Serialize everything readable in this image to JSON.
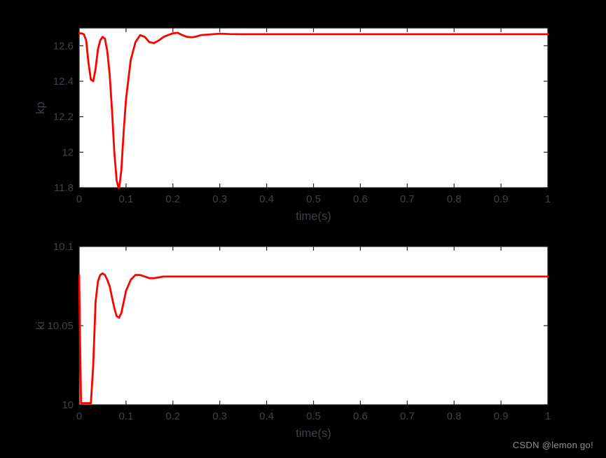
{
  "figure": {
    "background": "#000000",
    "plot_bg": "#ffffff",
    "axis_color": "#262626",
    "tick_label_color": "#41414b"
  },
  "watermark": {
    "text": "CSDN @lemon go!",
    "color": "#8f8f97"
  },
  "chart_data": [
    {
      "type": "line",
      "title": "",
      "xlabel": "time(s)",
      "ylabel": "kp",
      "xlim": [
        0,
        1
      ],
      "ylim": [
        11.8,
        12.7
      ],
      "grid": false,
      "legend": "none",
      "line_color": "#ff0000",
      "xticks": [
        0,
        0.1,
        0.2,
        0.3,
        0.4,
        0.5,
        0.6,
        0.7,
        0.8,
        0.9,
        1
      ],
      "xtick_labels": [
        "0",
        "0.1",
        "0.2",
        "0.3",
        "0.4",
        "0.5",
        "0.6",
        "0.7",
        "0.8",
        "0.9",
        "1"
      ],
      "yticks": [
        11.8,
        12,
        12.2,
        12.4,
        12.6
      ],
      "ytick_labels": [
        "11.8",
        "12",
        "12.2",
        "12.4",
        "12.6"
      ],
      "series": [
        {
          "name": "kp",
          "x": [
            0,
            0.005,
            0.01,
            0.015,
            0.02,
            0.025,
            0.03,
            0.035,
            0.04,
            0.045,
            0.05,
            0.055,
            0.06,
            0.065,
            0.07,
            0.075,
            0.08,
            0.085,
            0.09,
            0.095,
            0.1,
            0.11,
            0.12,
            0.13,
            0.14,
            0.15,
            0.16,
            0.17,
            0.18,
            0.19,
            0.2,
            0.21,
            0.22,
            0.23,
            0.24,
            0.25,
            0.26,
            0.28,
            0.3,
            0.32,
            0.35,
            0.4,
            0.5,
            0.6,
            0.7,
            0.8,
            0.9,
            1
          ],
          "y": [
            12.67,
            12.67,
            12.665,
            12.63,
            12.5,
            12.41,
            12.4,
            12.47,
            12.58,
            12.63,
            12.65,
            12.64,
            12.57,
            12.44,
            12.24,
            12.0,
            11.84,
            11.79,
            11.9,
            12.12,
            12.3,
            12.52,
            12.62,
            12.66,
            12.65,
            12.62,
            12.615,
            12.63,
            12.65,
            12.66,
            12.67,
            12.673,
            12.66,
            12.65,
            12.648,
            12.652,
            12.66,
            12.664,
            12.668,
            12.666,
            12.665,
            12.665,
            12.665,
            12.665,
            12.665,
            12.665,
            12.665,
            12.665
          ]
        }
      ]
    },
    {
      "type": "line",
      "title": "",
      "xlabel": "time(s)",
      "ylabel": "ki",
      "xlim": [
        0,
        1
      ],
      "ylim": [
        10,
        10.1
      ],
      "grid": false,
      "legend": "none",
      "line_color": "#ff0000",
      "xticks": [
        0,
        0.1,
        0.2,
        0.3,
        0.4,
        0.5,
        0.6,
        0.7,
        0.8,
        0.9,
        1
      ],
      "xtick_labels": [
        "0",
        "0.1",
        "0.2",
        "0.3",
        "0.4",
        "0.5",
        "0.6",
        "0.7",
        "0.8",
        "0.9",
        "1"
      ],
      "yticks": [
        10,
        10.05,
        10.1
      ],
      "ytick_labels": [
        "10",
        "10.05",
        "10.1"
      ],
      "series": [
        {
          "name": "ki",
          "x": [
            0,
            0.002,
            0.004,
            0.025,
            0.03,
            0.035,
            0.04,
            0.045,
            0.05,
            0.055,
            0.06,
            0.065,
            0.07,
            0.075,
            0.08,
            0.085,
            0.09,
            0.095,
            0.1,
            0.11,
            0.12,
            0.13,
            0.14,
            0.15,
            0.16,
            0.18,
            0.2,
            0.25,
            0.3,
            0.4,
            0.5,
            0.6,
            0.7,
            0.8,
            0.9,
            1
          ],
          "y": [
            10.082,
            10.04,
            10.001,
            10.001,
            10.025,
            10.065,
            10.078,
            10.082,
            10.083,
            10.082,
            10.079,
            10.075,
            10.068,
            10.061,
            10.056,
            10.055,
            10.058,
            10.065,
            10.072,
            10.079,
            10.082,
            10.082,
            10.081,
            10.08,
            10.08,
            10.081,
            10.081,
            10.081,
            10.081,
            10.081,
            10.081,
            10.081,
            10.081,
            10.081,
            10.081,
            10.081
          ]
        }
      ]
    }
  ]
}
